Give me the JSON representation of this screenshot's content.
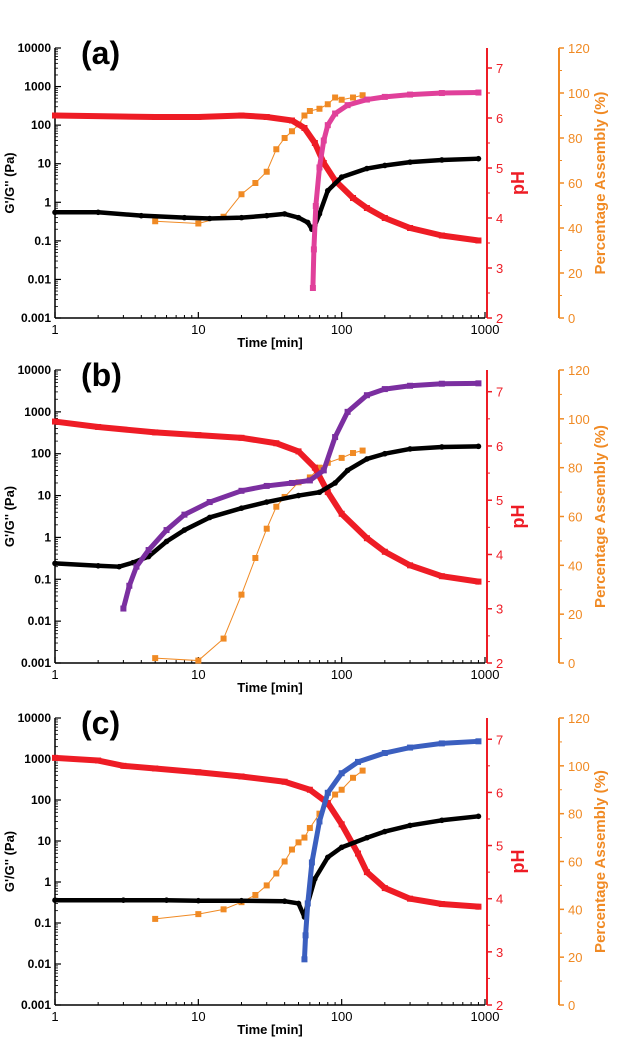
{
  "colors": {
    "gprime": "#e0409a",
    "g2prime": "#000000",
    "ph": "#ee1c25",
    "assembly": "#f08a24",
    "purple": "#7b2fa0",
    "blue": "#3b5fbf"
  },
  "chart_data": [
    {
      "panel": "(a)",
      "type": "scatter",
      "xlabel": "Time [min]",
      "ylabel_left": "G'/G'' (Pa)",
      "ylabel_ph": "pH",
      "ylabel_right": "Percentage Assembly (%)",
      "xscale": "log",
      "xlim": [
        1,
        1000
      ],
      "ylim_left": [
        0.001,
        10000
      ],
      "ylim_ph": [
        2,
        7.4
      ],
      "ylim_right": [
        0,
        120
      ],
      "x_ticks": [
        "1",
        "10",
        "100",
        "1000"
      ],
      "left_ticks": [
        "0.001",
        "0.01",
        "0.1",
        "1",
        "10",
        "100",
        "1000",
        "10000"
      ],
      "ph_ticks": [
        "2",
        "3",
        "4",
        "5",
        "6",
        "7"
      ],
      "right_ticks": [
        "0",
        "20",
        "40",
        "60",
        "80",
        "100",
        "120"
      ],
      "series": [
        {
          "id": "gprime",
          "axis": "left",
          "points": [
            [
              63,
              0.006
            ],
            [
              64,
              0.06
            ],
            [
              66,
              0.8
            ],
            [
              70,
              8
            ],
            [
              75,
              40
            ],
            [
              80,
              100
            ],
            [
              90,
              200
            ],
            [
              110,
              330
            ],
            [
              150,
              460
            ],
            [
              200,
              540
            ],
            [
              300,
              620
            ],
            [
              500,
              680
            ],
            [
              900,
              700
            ]
          ]
        },
        {
          "id": "g2prime",
          "axis": "left",
          "points": [
            [
              1,
              0.55
            ],
            [
              2,
              0.55
            ],
            [
              4,
              0.45
            ],
            [
              8,
              0.4
            ],
            [
              12,
              0.38
            ],
            [
              20,
              0.4
            ],
            [
              30,
              0.45
            ],
            [
              40,
              0.5
            ],
            [
              50,
              0.4
            ],
            [
              58,
              0.3
            ],
            [
              62,
              0.2
            ],
            [
              65,
              0.25
            ],
            [
              70,
              0.5
            ],
            [
              80,
              2
            ],
            [
              100,
              4.5
            ],
            [
              150,
              7.5
            ],
            [
              200,
              9
            ],
            [
              300,
              11
            ],
            [
              500,
              12.5
            ],
            [
              900,
              13.5
            ]
          ]
        },
        {
          "id": "ph",
          "axis": "ph",
          "points": [
            [
              1,
              6.05
            ],
            [
              5,
              6.02
            ],
            [
              10,
              6.02
            ],
            [
              20,
              6.05
            ],
            [
              30,
              6.02
            ],
            [
              45,
              5.95
            ],
            [
              55,
              5.8
            ],
            [
              65,
              5.5
            ],
            [
              75,
              5.1
            ],
            [
              90,
              4.75
            ],
            [
              120,
              4.4
            ],
            [
              150,
              4.2
            ],
            [
              200,
              4.0
            ],
            [
              300,
              3.8
            ],
            [
              500,
              3.65
            ],
            [
              900,
              3.55
            ]
          ]
        },
        {
          "id": "assembly",
          "axis": "right",
          "points": [
            [
              5,
              43
            ],
            [
              10,
              42
            ],
            [
              15,
              45
            ],
            [
              20,
              55
            ],
            [
              25,
              60
            ],
            [
              30,
              65
            ],
            [
              35,
              75
            ],
            [
              40,
              80
            ],
            [
              45,
              83
            ],
            [
              50,
              86
            ],
            [
              55,
              90
            ],
            [
              60,
              92
            ],
            [
              70,
              93
            ],
            [
              80,
              95
            ],
            [
              90,
              98
            ],
            [
              100,
              97
            ],
            [
              120,
              98
            ],
            [
              140,
              99
            ]
          ]
        }
      ]
    },
    {
      "panel": "(b)",
      "type": "scatter",
      "xlabel": "Time [min]",
      "ylabel_left": "G'/G'' (Pa)",
      "ylabel_ph": "pH",
      "ylabel_right": "Percentage Assembly (%)",
      "xscale": "log",
      "xlim": [
        1,
        1000
      ],
      "ylim_left": [
        0.001,
        10000
      ],
      "ylim_ph": [
        2,
        7.4
      ],
      "ylim_right": [
        0,
        120
      ],
      "x_ticks": [
        "1",
        "10",
        "100",
        "1000"
      ],
      "left_ticks": [
        "0.001",
        "0.01",
        "0.1",
        "1",
        "10",
        "100",
        "1000",
        "10000"
      ],
      "ph_ticks": [
        "2",
        "3",
        "4",
        "5",
        "6",
        "7"
      ],
      "right_ticks": [
        "0",
        "20",
        "40",
        "60",
        "80",
        "100",
        "120"
      ],
      "series": [
        {
          "id": "purple",
          "axis": "left",
          "points": [
            [
              3,
              0.02
            ],
            [
              3.3,
              0.07
            ],
            [
              3.7,
              0.2
            ],
            [
              4.5,
              0.5
            ],
            [
              6,
              1.5
            ],
            [
              8,
              3.5
            ],
            [
              12,
              7
            ],
            [
              20,
              13
            ],
            [
              30,
              17
            ],
            [
              45,
              20
            ],
            [
              60,
              23
            ],
            [
              75,
              40
            ],
            [
              90,
              250
            ],
            [
              110,
              1000
            ],
            [
              150,
              2500
            ],
            [
              200,
              3500
            ],
            [
              300,
              4200
            ],
            [
              500,
              4700
            ],
            [
              900,
              4800
            ]
          ]
        },
        {
          "id": "g2prime",
          "axis": "left",
          "points": [
            [
              1,
              0.24
            ],
            [
              2,
              0.21
            ],
            [
              2.8,
              0.2
            ],
            [
              3.5,
              0.25
            ],
            [
              4.5,
              0.35
            ],
            [
              6,
              0.8
            ],
            [
              8,
              1.5
            ],
            [
              12,
              3
            ],
            [
              20,
              5
            ],
            [
              30,
              7
            ],
            [
              50,
              10
            ],
            [
              70,
              12
            ],
            [
              90,
              20
            ],
            [
              110,
              40
            ],
            [
              150,
              75
            ],
            [
              200,
              100
            ],
            [
              300,
              130
            ],
            [
              500,
              145
            ],
            [
              900,
              150
            ]
          ]
        },
        {
          "id": "ph",
          "axis": "ph",
          "points": [
            [
              1,
              6.45
            ],
            [
              2,
              6.35
            ],
            [
              5,
              6.25
            ],
            [
              10,
              6.2
            ],
            [
              20,
              6.15
            ],
            [
              35,
              6.05
            ],
            [
              50,
              5.9
            ],
            [
              65,
              5.6
            ],
            [
              80,
              5.15
            ],
            [
              100,
              4.75
            ],
            [
              150,
              4.3
            ],
            [
              200,
              4.05
            ],
            [
              300,
              3.8
            ],
            [
              500,
              3.6
            ],
            [
              900,
              3.5
            ]
          ]
        },
        {
          "id": "assembly",
          "axis": "right",
          "points": [
            [
              5,
              2
            ],
            [
              10,
              1
            ],
            [
              15,
              10
            ],
            [
              20,
              28
            ],
            [
              25,
              43
            ],
            [
              30,
              55
            ],
            [
              35,
              64
            ],
            [
              40,
              68
            ],
            [
              50,
              74
            ],
            [
              60,
              76
            ],
            [
              70,
              80
            ],
            [
              80,
              82
            ],
            [
              100,
              84
            ],
            [
              120,
              86
            ],
            [
              140,
              87
            ]
          ]
        }
      ]
    },
    {
      "panel": "(c)",
      "type": "scatter",
      "xlabel": "Time [min]",
      "ylabel_left": "G'/G'' (Pa)",
      "ylabel_ph": "pH",
      "ylabel_right": "Percentage Assembly (%)",
      "xscale": "log",
      "xlim": [
        1,
        1000
      ],
      "ylim_left": [
        0.001,
        10000
      ],
      "ylim_ph": [
        2,
        7.4
      ],
      "ylim_right": [
        0,
        120
      ],
      "x_ticks": [
        "1",
        "10",
        "100",
        "1000"
      ],
      "left_ticks": [
        "0.001",
        "0.01",
        "0.1",
        "1",
        "10",
        "100",
        "1000",
        "10000"
      ],
      "ph_ticks": [
        "2",
        "3",
        "4",
        "5",
        "6",
        "7"
      ],
      "right_ticks": [
        "0",
        "20",
        "40",
        "60",
        "80",
        "100",
        "120"
      ],
      "series": [
        {
          "id": "blue",
          "axis": "left",
          "points": [
            [
              55,
              0.013
            ],
            [
              56,
              0.05
            ],
            [
              58,
              0.3
            ],
            [
              62,
              3
            ],
            [
              70,
              30
            ],
            [
              80,
              150
            ],
            [
              100,
              450
            ],
            [
              130,
              850
            ],
            [
              200,
              1400
            ],
            [
              300,
              1900
            ],
            [
              500,
              2400
            ],
            [
              900,
              2700
            ]
          ]
        },
        {
          "id": "g2prime",
          "axis": "left",
          "points": [
            [
              1,
              0.36
            ],
            [
              3,
              0.36
            ],
            [
              6,
              0.36
            ],
            [
              10,
              0.35
            ],
            [
              20,
              0.35
            ],
            [
              40,
              0.34
            ],
            [
              50,
              0.3
            ],
            [
              55,
              0.14
            ],
            [
              58,
              0.3
            ],
            [
              65,
              1.2
            ],
            [
              80,
              4
            ],
            [
              100,
              7
            ],
            [
              150,
              12
            ],
            [
              200,
              17
            ],
            [
              300,
              24
            ],
            [
              500,
              32
            ],
            [
              900,
              40
            ]
          ]
        },
        {
          "id": "ph",
          "axis": "ph",
          "points": [
            [
              1,
              6.65
            ],
            [
              2,
              6.6
            ],
            [
              3,
              6.5
            ],
            [
              5,
              6.45
            ],
            [
              10,
              6.38
            ],
            [
              20,
              6.3
            ],
            [
              40,
              6.2
            ],
            [
              60,
              6.05
            ],
            [
              80,
              5.8
            ],
            [
              100,
              5.4
            ],
            [
              130,
              4.85
            ],
            [
              150,
              4.5
            ],
            [
              200,
              4.2
            ],
            [
              300,
              4.0
            ],
            [
              500,
              3.9
            ],
            [
              900,
              3.85
            ]
          ]
        },
        {
          "id": "assembly",
          "axis": "right",
          "points": [
            [
              5,
              36
            ],
            [
              10,
              38
            ],
            [
              15,
              40
            ],
            [
              20,
              43
            ],
            [
              25,
              46
            ],
            [
              30,
              50
            ],
            [
              35,
              55
            ],
            [
              40,
              60
            ],
            [
              45,
              65
            ],
            [
              50,
              68
            ],
            [
              55,
              70
            ],
            [
              60,
              74
            ],
            [
              70,
              80
            ],
            [
              80,
              84
            ],
            [
              90,
              88
            ],
            [
              100,
              90
            ],
            [
              120,
              95
            ],
            [
              140,
              98
            ]
          ]
        }
      ]
    }
  ]
}
